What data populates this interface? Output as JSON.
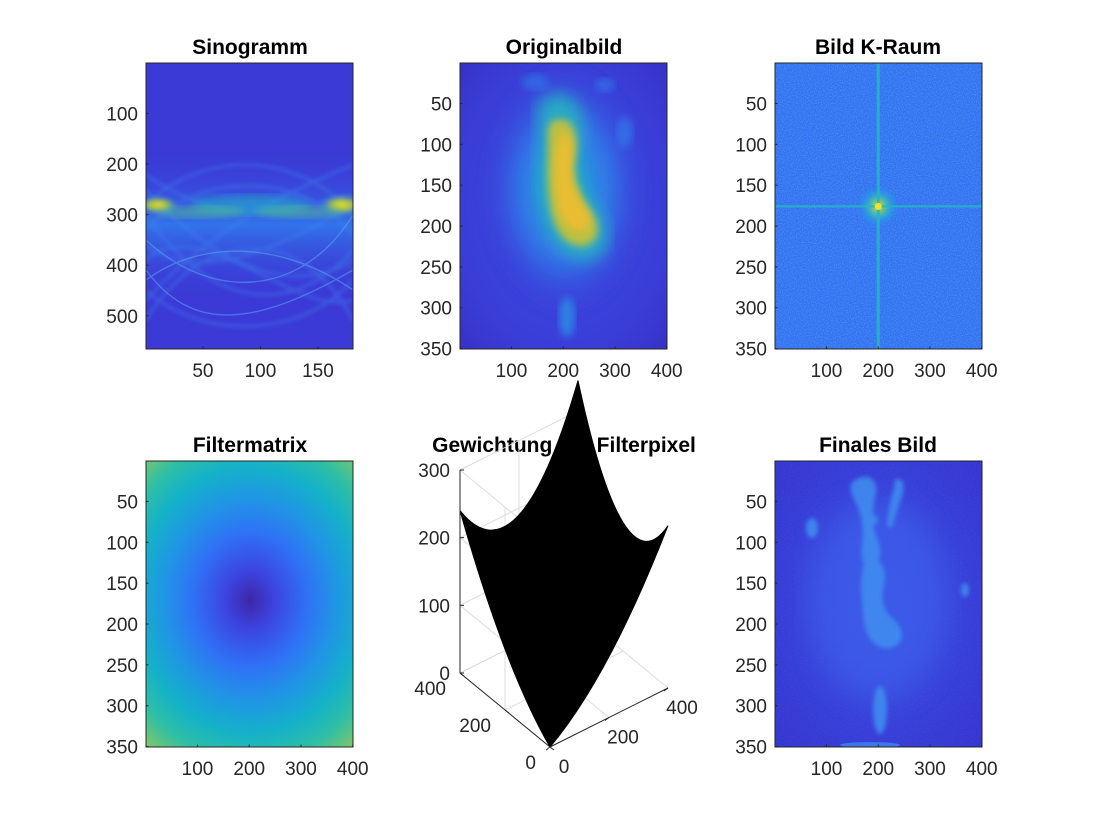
{
  "chart_data": [
    {
      "id": "sinogramm",
      "type": "heatmap",
      "title": "Sinogramm",
      "xlim": [
        0.5,
        180.5
      ],
      "ylim": [
        0.5,
        565.5
      ],
      "y_reversed": true,
      "x_ticks": [
        50,
        100,
        150
      ],
      "y_ticks": [
        100,
        200,
        300,
        400,
        500
      ],
      "colormap": "parula"
    },
    {
      "id": "originalbild",
      "type": "heatmap",
      "title": "Originalbild",
      "xlim": [
        0.5,
        400.5
      ],
      "ylim": [
        0.5,
        350.5
      ],
      "y_reversed": true,
      "x_ticks": [
        100,
        200,
        300,
        400
      ],
      "y_ticks": [
        50,
        100,
        150,
        200,
        250,
        300,
        350
      ],
      "colormap": "parula"
    },
    {
      "id": "bild-k-raum",
      "type": "heatmap",
      "title": "Bild K-Raum",
      "xlim": [
        0.5,
        400.5
      ],
      "ylim": [
        0.5,
        350.5
      ],
      "y_reversed": true,
      "x_ticks": [
        100,
        200,
        300,
        400
      ],
      "y_ticks": [
        50,
        100,
        150,
        200,
        250,
        300,
        350
      ],
      "center": [
        200,
        176
      ],
      "colormap": "parula"
    },
    {
      "id": "filtermatrix",
      "type": "heatmap",
      "title": "Filtermatrix",
      "xlim": [
        0.5,
        400.5
      ],
      "ylim": [
        0.5,
        350.5
      ],
      "y_reversed": true,
      "x_ticks": [
        100,
        200,
        300,
        400
      ],
      "y_ticks": [
        50,
        100,
        150,
        200,
        250,
        300,
        350
      ],
      "center": [
        200,
        175
      ],
      "colormap": "parula"
    },
    {
      "id": "gewichtung",
      "type": "surface",
      "title": "Gewichtung der Filterpixel",
      "xlim": [
        0,
        400
      ],
      "ylim": [
        0,
        400
      ],
      "zlim": [
        0,
        300
      ],
      "x_ticks": [
        0,
        200,
        400
      ],
      "y_ticks": [
        0,
        200,
        400
      ],
      "z_ticks": [
        0,
        100,
        200,
        300
      ],
      "corner_heights": {
        "near": 0,
        "left": 240,
        "right": 240,
        "far": 345
      },
      "surface_color": "#000000"
    },
    {
      "id": "finales-bild",
      "type": "heatmap",
      "title": "Finales Bild",
      "xlim": [
        0.5,
        400.5
      ],
      "ylim": [
        0.5,
        350.5
      ],
      "y_reversed": true,
      "x_ticks": [
        100,
        200,
        300,
        400
      ],
      "y_ticks": [
        50,
        100,
        150,
        200,
        250,
        300,
        350
      ],
      "colormap": "parula"
    }
  ]
}
